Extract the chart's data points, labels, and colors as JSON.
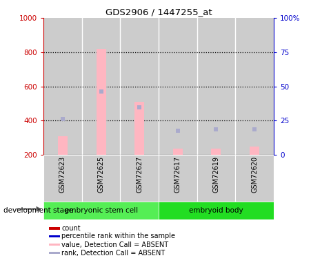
{
  "title": "GDS2906 / 1447255_at",
  "samples": [
    "GSM72623",
    "GSM72625",
    "GSM72627",
    "GSM72617",
    "GSM72619",
    "GSM72620"
  ],
  "group1_name": "embryonic stem cell",
  "group2_name": "embryoid body",
  "group1_color": "#55EE55",
  "group2_color": "#22DD22",
  "group1_indices": [
    0,
    1,
    2
  ],
  "group2_indices": [
    3,
    4,
    5
  ],
  "bar_values": [
    310,
    820,
    510,
    235,
    238,
    248
  ],
  "bar_color_absent": "#FFB6C1",
  "rank_squares": [
    410,
    570,
    478,
    340,
    350,
    350
  ],
  "rank_color_absent": "#AAAACC",
  "ylim_left": [
    200,
    1000
  ],
  "ylim_right": [
    0,
    100
  ],
  "left_ticks": [
    200,
    400,
    600,
    800,
    1000
  ],
  "right_ticks": [
    0,
    25,
    50,
    75,
    100
  ],
  "right_tick_labels": [
    "0",
    "25",
    "50",
    "75",
    "100%"
  ],
  "left_tick_color": "#CC0000",
  "right_tick_color": "#0000CC",
  "group_label": "development stage",
  "legend_items": [
    {
      "label": "count",
      "color": "#CC0000"
    },
    {
      "label": "percentile rank within the sample",
      "color": "#0000CC"
    },
    {
      "label": "value, Detection Call = ABSENT",
      "color": "#FFB6C1"
    },
    {
      "label": "rank, Detection Call = ABSENT",
      "color": "#AAAACC"
    }
  ],
  "bar_bottom": 200,
  "col_bg_color": "#CCCCCC",
  "plot_bg": "white",
  "bar_width": 0.25
}
